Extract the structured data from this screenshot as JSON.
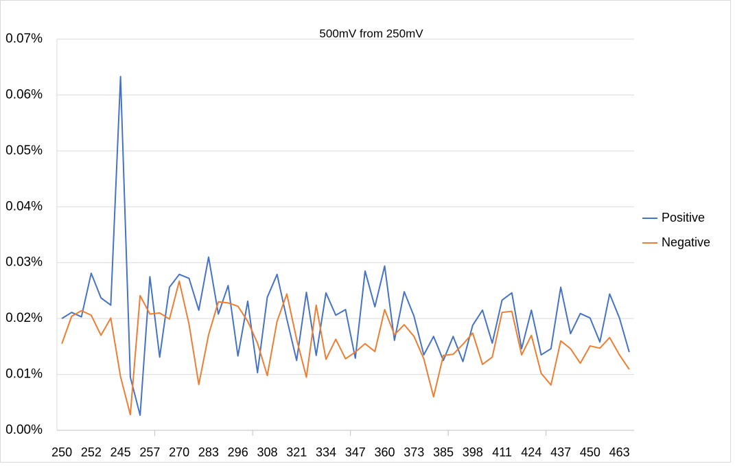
{
  "chart_data": {
    "type": "line",
    "title": "500mV from 250mV",
    "categories": [
      "250",
      null,
      null,
      "252",
      null,
      null,
      "245",
      null,
      null,
      "257",
      null,
      null,
      "270",
      null,
      null,
      "283",
      null,
      null,
      "296",
      null,
      null,
      "308",
      null,
      null,
      "321",
      null,
      null,
      "334",
      null,
      null,
      "347",
      null,
      null,
      "360",
      null,
      null,
      "373",
      null,
      null,
      "385",
      null,
      null,
      "398",
      null,
      null,
      "411",
      null,
      null,
      "424",
      null,
      null,
      "437",
      null,
      null,
      "450",
      null,
      null,
      "463",
      null
    ],
    "series": [
      {
        "name": "Positive",
        "color": "#4472c4",
        "values": [
          0.02,
          0.0211,
          0.0203,
          0.0281,
          0.0237,
          0.0224,
          0.0633,
          0.0095,
          0.0027,
          0.0275,
          0.0131,
          0.0256,
          0.0279,
          0.0272,
          0.0215,
          0.031,
          0.0208,
          0.0259,
          0.0133,
          0.0231,
          0.0103,
          0.0238,
          0.0279,
          0.0199,
          0.0125,
          0.0247,
          0.0134,
          0.0246,
          0.0206,
          0.0216,
          0.0129,
          0.0285,
          0.0221,
          0.0294,
          0.0161,
          0.0248,
          0.0204,
          0.0135,
          0.0168,
          0.0125,
          0.0168,
          0.0123,
          0.0188,
          0.0215,
          0.0156,
          0.0233,
          0.0246,
          0.0146,
          0.0215,
          0.0135,
          0.0146,
          0.0256,
          0.0173,
          0.0209,
          0.0201,
          0.0158,
          0.0244,
          0.0201,
          0.014
        ]
      },
      {
        "name": "Negative",
        "color": "#ed7d31",
        "values": [
          0.0155,
          0.0204,
          0.0214,
          0.0206,
          0.017,
          0.0201,
          0.0096,
          0.0028,
          0.0241,
          0.0208,
          0.021,
          0.0199,
          0.0267,
          0.019,
          0.0082,
          0.0171,
          0.023,
          0.0228,
          0.0222,
          0.0195,
          0.0156,
          0.0098,
          0.0195,
          0.0244,
          0.0163,
          0.0095,
          0.0224,
          0.0127,
          0.0163,
          0.0128,
          0.014,
          0.0155,
          0.0141,
          0.0216,
          0.0171,
          0.0189,
          0.0168,
          0.0128,
          0.006,
          0.0134,
          0.0136,
          0.0154,
          0.0174,
          0.0118,
          0.0131,
          0.0211,
          0.0213,
          0.0135,
          0.017,
          0.0102,
          0.0081,
          0.016,
          0.0146,
          0.012,
          0.0151,
          0.0147,
          0.0166,
          0.0135,
          0.0109
        ]
      }
    ],
    "ylim": [
      0,
      0.07
    ],
    "yticks": [
      {
        "value": 0,
        "label": "0.00%"
      },
      {
        "value": 0.01,
        "label": "0.01%"
      },
      {
        "value": 0.02,
        "label": "0.02%"
      },
      {
        "value": 0.03,
        "label": "0.03%"
      },
      {
        "value": 0.04,
        "label": "0.04%"
      },
      {
        "value": 0.05,
        "label": "0.05%"
      },
      {
        "value": 0.06,
        "label": "0.06%"
      },
      {
        "value": 0.07,
        "label": "0.07%"
      }
    ],
    "grid": true,
    "legend": "right"
  }
}
